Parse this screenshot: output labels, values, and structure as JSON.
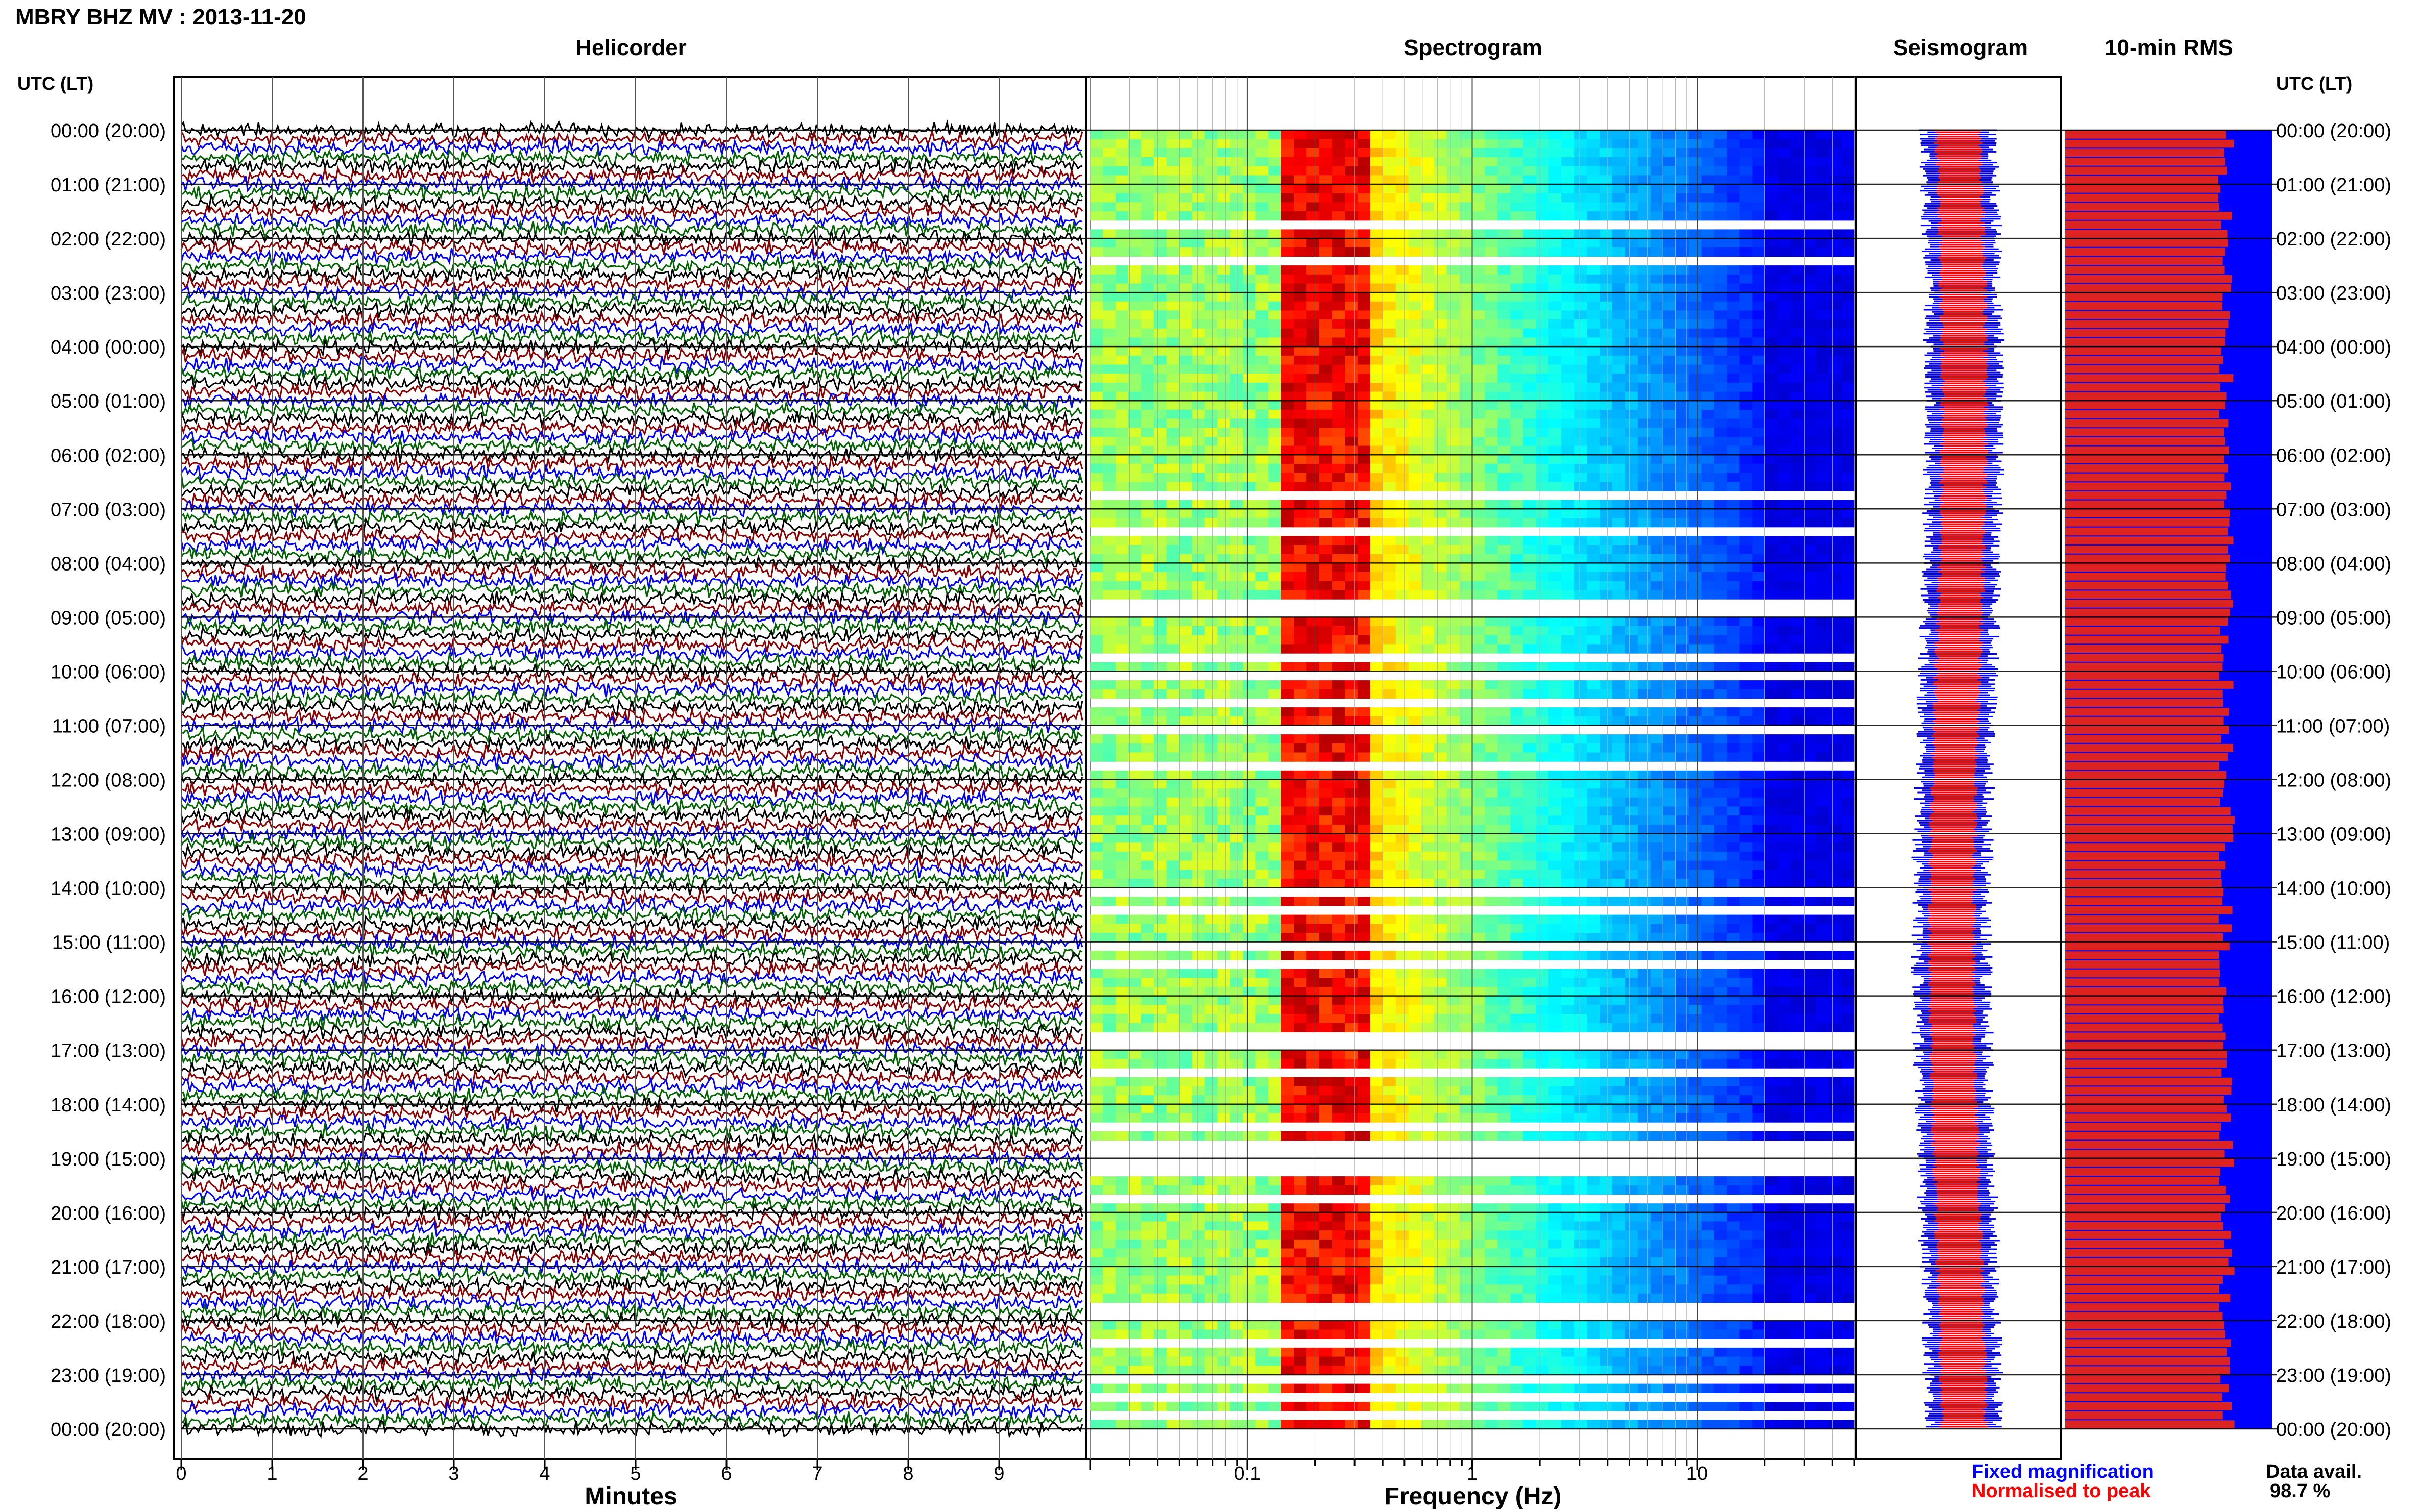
{
  "title": "MBRY BHZ MV : 2013-11-20",
  "panels": {
    "helicorder": "Helicorder",
    "spectrogram": "Spectrogram",
    "seismogram": "Seismogram",
    "rms": "10-min RMS"
  },
  "time_header_left": "UTC (LT)",
  "time_header_right": "UTC (LT)",
  "time_labels": [
    "00:00 (20:00)",
    "01:00 (21:00)",
    "02:00 (22:00)",
    "03:00 (23:00)",
    "04:00 (00:00)",
    "05:00 (01:00)",
    "06:00 (02:00)",
    "07:00 (03:00)",
    "08:00 (04:00)",
    "09:00 (05:00)",
    "10:00 (06:00)",
    "11:00 (07:00)",
    "12:00 (08:00)",
    "13:00 (09:00)",
    "14:00 (10:00)",
    "15:00 (11:00)",
    "16:00 (12:00)",
    "17:00 (13:00)",
    "18:00 (14:00)",
    "19:00 (15:00)",
    "20:00 (16:00)",
    "21:00 (17:00)",
    "22:00 (18:00)",
    "23:00 (19:00)",
    "00:00 (20:00)"
  ],
  "helicorder_xlabel": "Minutes",
  "helicorder_ticks": [
    "0",
    "1",
    "2",
    "3",
    "4",
    "5",
    "6",
    "7",
    "8",
    "9"
  ],
  "spectrogram_xlabel": "Frequency (Hz)",
  "spectrogram_ticks": [
    "0.1",
    "1",
    "10"
  ],
  "legend": {
    "fixed": "Fixed magnification",
    "normalised": "Normalised to peak",
    "fixed_color": "#0000ff",
    "normalised_color": "#ff0000"
  },
  "data_avail_label": "Data avail.",
  "data_avail_value": "98.7 %",
  "trace_colors": [
    "#000000",
    "#8b0000",
    "#0000ff",
    "#006400"
  ],
  "chart_data": [
    {
      "type": "line",
      "panel": "Helicorder",
      "xlabel": "Minutes",
      "xlim": [
        0,
        10
      ],
      "rows_per_hour": 6,
      "hours": 24,
      "colors": [
        "#000000",
        "#8b0000",
        "#0000ff",
        "#006400"
      ]
    },
    {
      "type": "heatmap",
      "panel": "Spectrogram",
      "xlabel": "Frequency (Hz)",
      "xscale": "log",
      "xlim": [
        0.02,
        50
      ],
      "colormap": "jet",
      "band_peak_hz": [
        0.14,
        0.35
      ]
    },
    {
      "type": "line",
      "panel": "Seismogram",
      "series": [
        {
          "name": "Fixed magnification",
          "color": "#0000ff"
        },
        {
          "name": "Normalised to peak",
          "color": "#ff0000"
        }
      ]
    },
    {
      "type": "bar",
      "panel": "10-min RMS",
      "orientation": "horizontal",
      "bins": 144,
      "bar_color": "#dd2222",
      "background_color": "#0000ff",
      "data_availability_percent": 98.7
    }
  ]
}
